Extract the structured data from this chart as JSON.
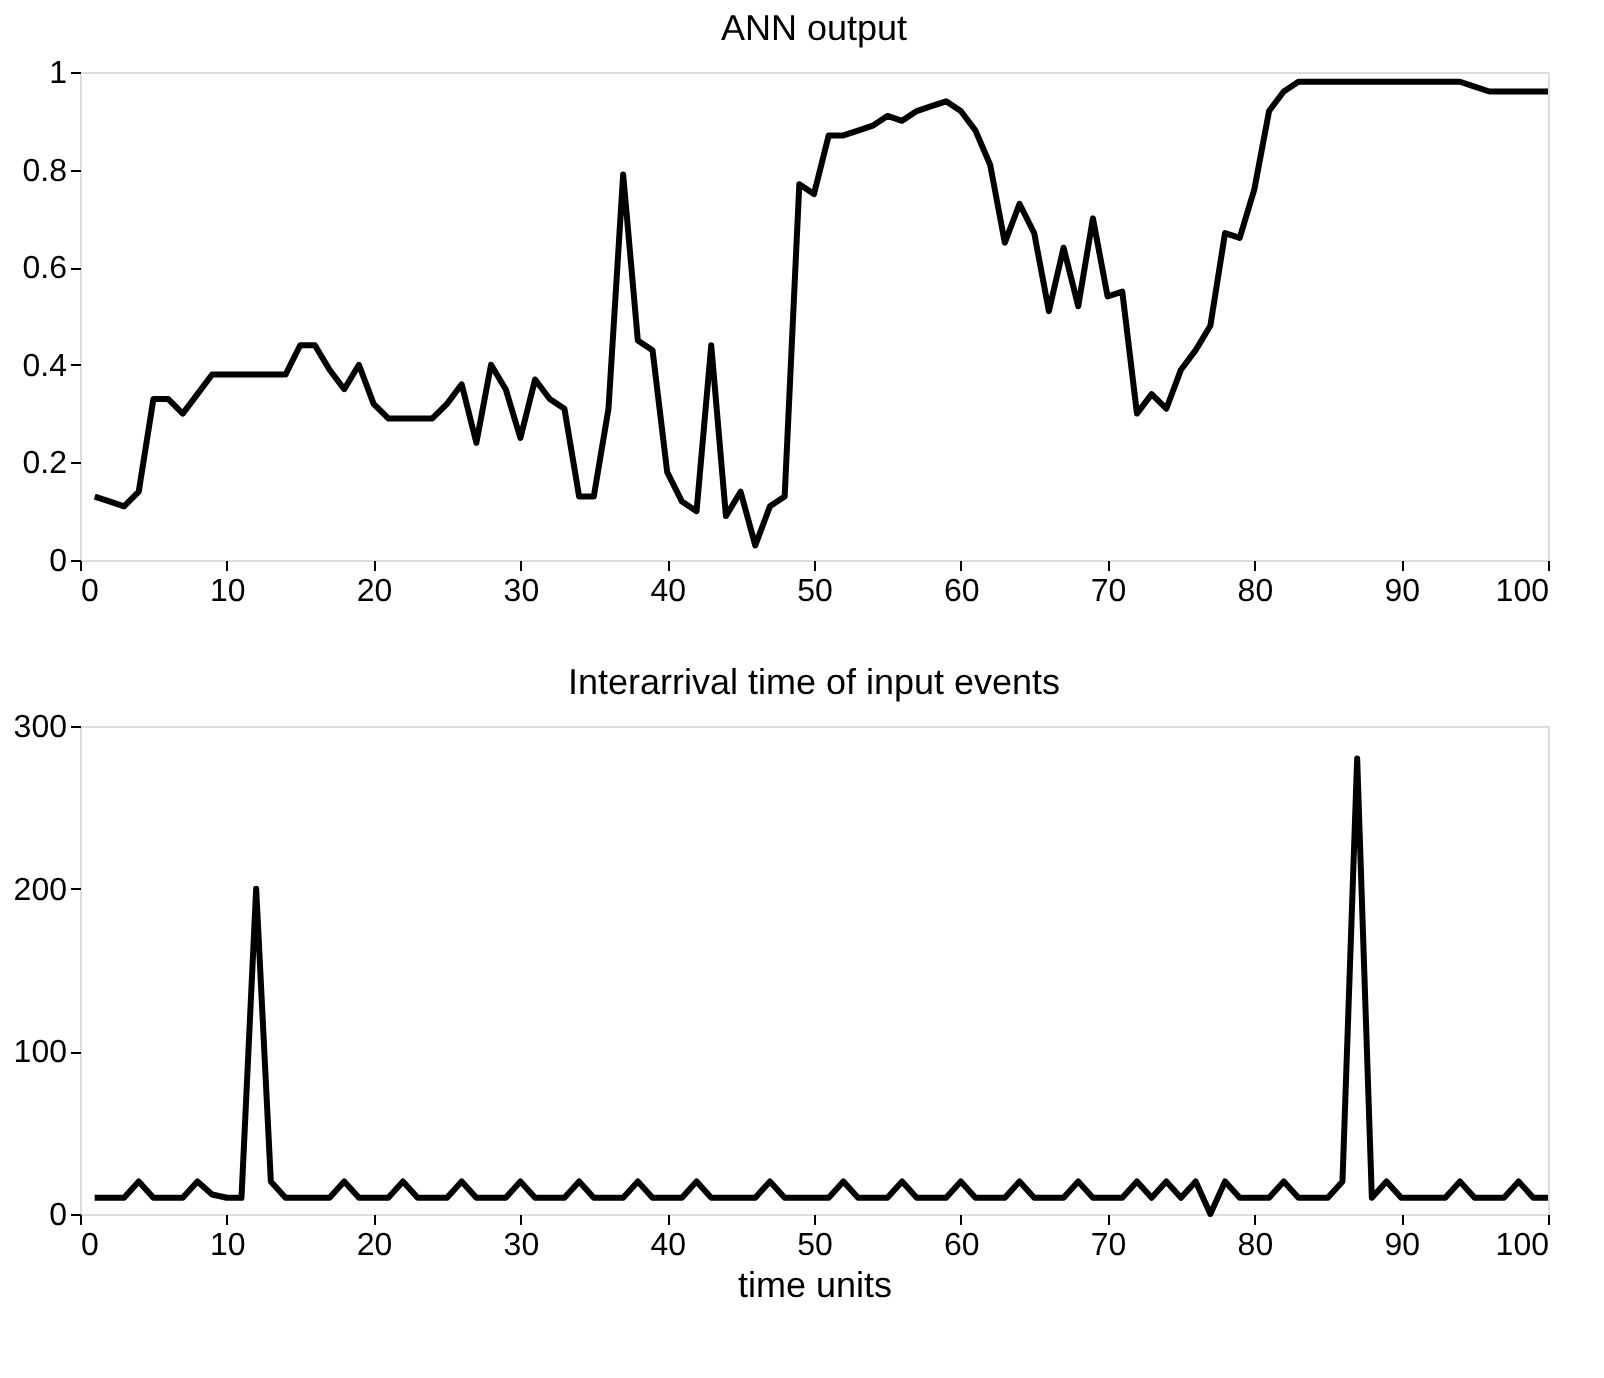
{
  "chart_data": [
    {
      "type": "line",
      "title": "ANN output",
      "x": [
        1,
        2,
        3,
        4,
        5,
        6,
        7,
        8,
        9,
        10,
        11,
        12,
        13,
        14,
        15,
        16,
        17,
        18,
        19,
        20,
        21,
        22,
        23,
        24,
        25,
        26,
        27,
        28,
        29,
        30,
        31,
        32,
        33,
        34,
        35,
        36,
        37,
        38,
        39,
        40,
        41,
        42,
        43,
        44,
        45,
        46,
        47,
        48,
        49,
        50,
        51,
        52,
        53,
        54,
        55,
        56,
        57,
        58,
        59,
        60,
        61,
        62,
        63,
        64,
        65,
        66,
        67,
        68,
        69,
        70,
        71,
        72,
        73,
        74,
        75,
        76,
        77,
        78,
        79,
        80,
        81,
        82,
        83,
        84,
        85,
        86,
        87,
        88,
        89,
        90,
        91,
        92,
        93,
        94,
        95,
        96,
        97,
        98,
        99,
        100
      ],
      "series": [
        {
          "color": "#000000",
          "values": [
            0.13,
            0.12,
            0.11,
            0.14,
            0.33,
            0.33,
            0.3,
            0.34,
            0.38,
            0.38,
            0.38,
            0.38,
            0.38,
            0.38,
            0.44,
            0.44,
            0.39,
            0.35,
            0.4,
            0.32,
            0.29,
            0.29,
            0.29,
            0.29,
            0.32,
            0.36,
            0.24,
            0.4,
            0.35,
            0.25,
            0.37,
            0.33,
            0.31,
            0.13,
            0.13,
            0.31,
            0.79,
            0.45,
            0.43,
            0.18,
            0.12,
            0.1,
            0.44,
            0.09,
            0.14,
            0.03,
            0.11,
            0.13,
            0.77,
            0.75,
            0.87,
            0.87,
            0.88,
            0.89,
            0.91,
            0.9,
            0.92,
            0.93,
            0.94,
            0.92,
            0.88,
            0.81,
            0.65,
            0.73,
            0.67,
            0.51,
            0.64,
            0.52,
            0.7,
            0.54,
            0.55,
            0.3,
            0.34,
            0.31,
            0.39,
            0.43,
            0.48,
            0.67,
            0.66,
            0.76,
            0.92,
            0.96,
            0.98,
            0.98,
            0.98,
            0.98,
            0.98,
            0.98,
            0.98,
            0.98,
            0.98,
            0.98,
            0.98,
            0.98,
            0.97,
            0.96,
            0.96,
            0.96,
            0.96,
            0.96
          ]
        }
      ],
      "xlim": [
        0,
        100
      ],
      "xticks": [
        0,
        10,
        20,
        30,
        40,
        50,
        60,
        70,
        80,
        90,
        100
      ],
      "ylim": [
        0,
        1
      ],
      "yticks": [
        0,
        0.2,
        0.4,
        0.6,
        0.8,
        1
      ],
      "grid": false,
      "marker": "none",
      "line_style": "solid"
    },
    {
      "type": "line",
      "title": "Interarrival time of input events",
      "xlabel": "time units",
      "x": [
        1,
        2,
        3,
        4,
        5,
        6,
        7,
        8,
        9,
        10,
        11,
        12,
        13,
        14,
        15,
        16,
        17,
        18,
        19,
        20,
        21,
        22,
        23,
        24,
        25,
        26,
        27,
        28,
        29,
        30,
        31,
        32,
        33,
        34,
        35,
        36,
        37,
        38,
        39,
        40,
        41,
        42,
        43,
        44,
        45,
        46,
        47,
        48,
        49,
        50,
        51,
        52,
        53,
        54,
        55,
        56,
        57,
        58,
        59,
        60,
        61,
        62,
        63,
        64,
        65,
        66,
        67,
        68,
        69,
        70,
        71,
        72,
        73,
        74,
        75,
        76,
        77,
        78,
        79,
        80,
        81,
        82,
        83,
        84,
        85,
        86,
        87,
        88,
        89,
        90,
        91,
        92,
        93,
        94,
        95,
        96,
        97,
        98,
        99,
        100
      ],
      "series": [
        {
          "color": "#000000",
          "values": [
            10,
            10,
            10,
            20,
            10,
            10,
            10,
            20,
            12,
            10,
            10,
            200,
            20,
            10,
            10,
            10,
            10,
            20,
            10,
            10,
            10,
            20,
            10,
            10,
            10,
            20,
            10,
            10,
            10,
            20,
            10,
            10,
            10,
            20,
            10,
            10,
            10,
            20,
            10,
            10,
            10,
            20,
            10,
            10,
            10,
            10,
            20,
            10,
            10,
            10,
            10,
            20,
            10,
            10,
            10,
            20,
            10,
            10,
            10,
            20,
            10,
            10,
            10,
            20,
            10,
            10,
            10,
            20,
            10,
            10,
            10,
            20,
            10,
            20,
            10,
            20,
            0,
            20,
            10,
            10,
            10,
            20,
            10,
            10,
            10,
            20,
            280,
            10,
            20,
            10,
            10,
            10,
            10,
            20,
            10,
            10,
            10,
            20,
            10,
            10
          ]
        }
      ],
      "xlim": [
        0,
        100
      ],
      "xticks": [
        0,
        10,
        20,
        30,
        40,
        50,
        60,
        70,
        80,
        90,
        100
      ],
      "ylim": [
        0,
        300
      ],
      "yticks": [
        0,
        100,
        200,
        300
      ],
      "grid": false,
      "marker": "none",
      "line_style": "solid"
    }
  ]
}
